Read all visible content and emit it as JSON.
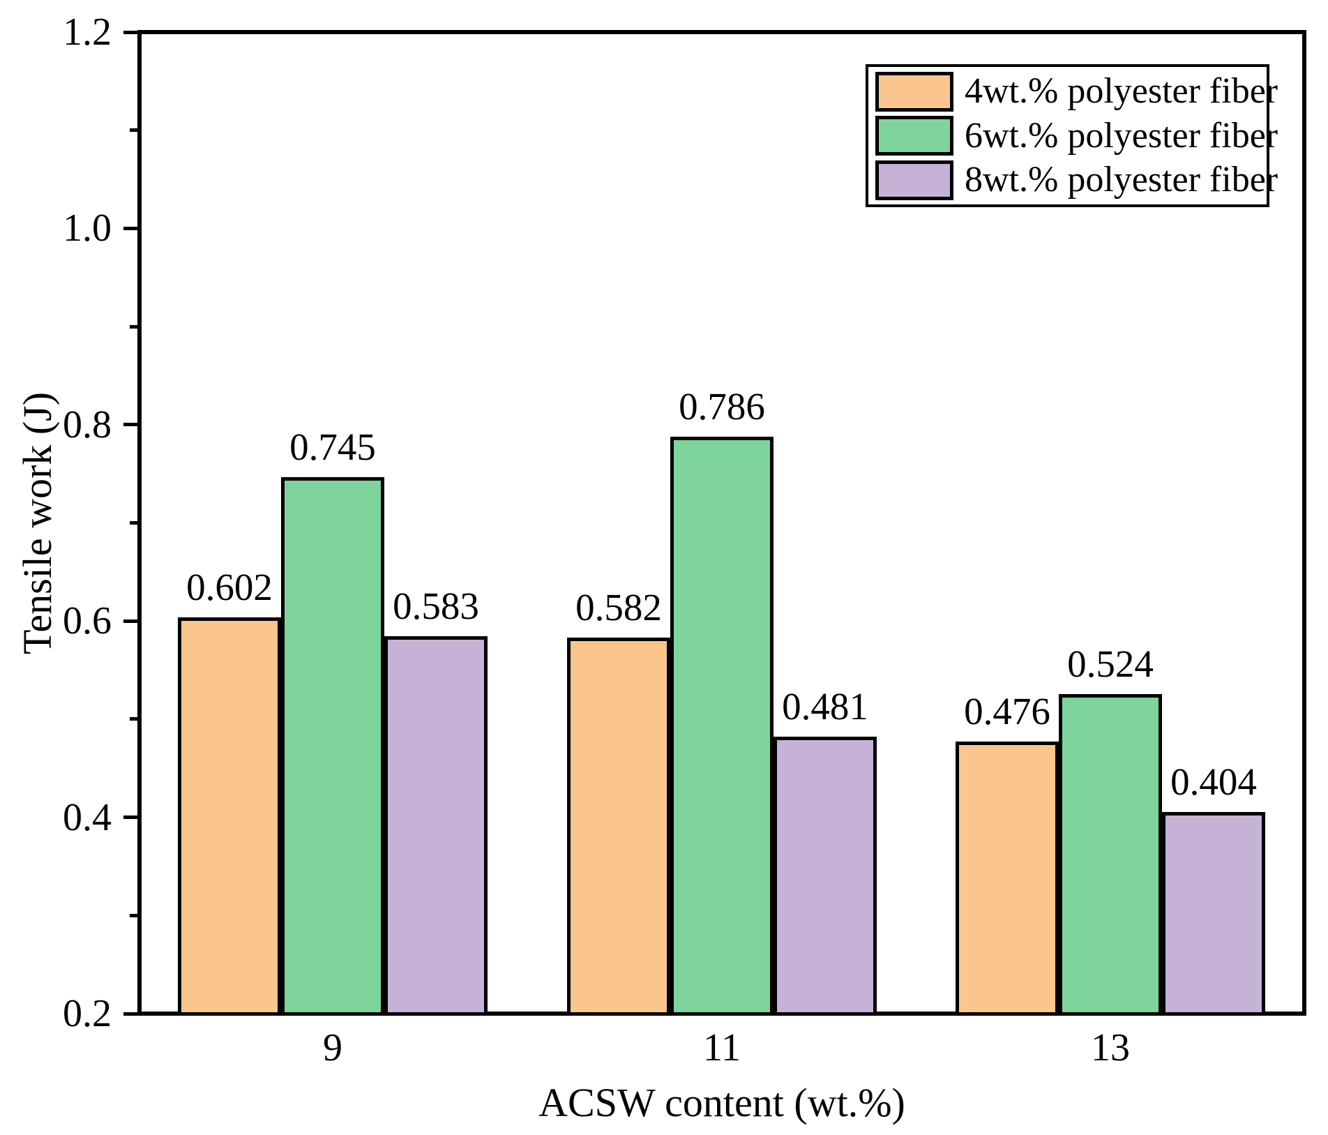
{
  "chart_data": {
    "type": "bar",
    "title": "",
    "xlabel": "ACSW content (wt.%)",
    "ylabel": "Tensile work (J)",
    "categories": [
      "9",
      "11",
      "13"
    ],
    "series": [
      {
        "name": "4wt.% polyester fiber",
        "color": "#FBC68E",
        "values": [
          0.602,
          0.582,
          0.476
        ]
      },
      {
        "name": "6wt.% polyester fiber",
        "color": "#7FD49C",
        "values": [
          0.745,
          0.786,
          0.524
        ]
      },
      {
        "name": "8wt.% polyester fiber",
        "color": "#C6B1D7",
        "values": [
          0.583,
          0.481,
          0.404
        ]
      }
    ],
    "value_labels": [
      "0.602",
      "0.745",
      "0.583",
      "0.582",
      "0.786",
      "0.481",
      "0.476",
      "0.524",
      "0.404"
    ],
    "ylim": [
      0.2,
      1.2
    ],
    "y_major_ticks": [
      0.2,
      0.4,
      0.6,
      0.8,
      1.0,
      1.2
    ],
    "y_major_tick_labels": [
      "0.2",
      "0.4",
      "0.6",
      "0.8",
      "1.0",
      "1.2"
    ],
    "y_minor_ticks": [
      0.3,
      0.5,
      0.7,
      0.9,
      1.1
    ],
    "grid": false,
    "legend_position": "top-right",
    "colors": {
      "axis": "#000000",
      "background": "#ffffff",
      "bar_border": "#000000"
    }
  }
}
